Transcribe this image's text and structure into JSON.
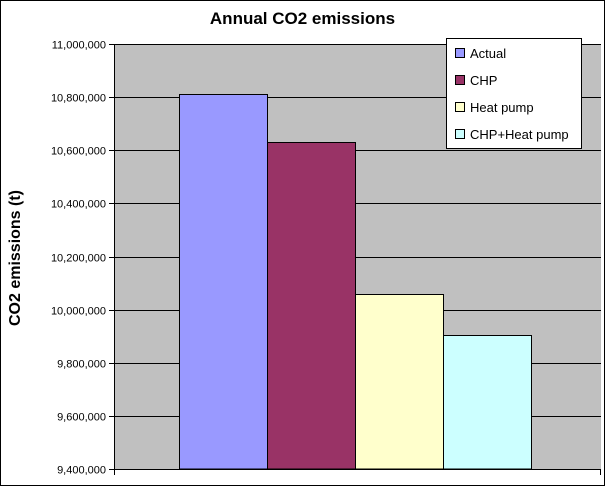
{
  "chart_data": {
    "type": "bar",
    "title": "Annual CO2 emissions",
    "xlabel": "",
    "ylabel": "CO2 emissions (t)",
    "ylim": [
      9400000,
      11000000
    ],
    "yticks": [
      9400000,
      9600000,
      9800000,
      10000000,
      10200000,
      10400000,
      10600000,
      10800000,
      11000000
    ],
    "ytick_labels": [
      "9,400,000",
      "9,600,000",
      "9,800,000",
      "10,000,000",
      "10,200,000",
      "10,400,000",
      "10,600,000",
      "10,800,000",
      "11,000,000"
    ],
    "grid": true,
    "legend_position": "top-right",
    "series": [
      {
        "name": "Actual",
        "value": 10810000,
        "color": "#9999ff"
      },
      {
        "name": "CHP",
        "value": 10630000,
        "color": "#993366"
      },
      {
        "name": "Heat pump",
        "value": 10060000,
        "color": "#ffffcc"
      },
      {
        "name": "CHP+Heat pump",
        "value": 9905000,
        "color": "#ccffff"
      }
    ]
  },
  "colors": {
    "plot_background": "#c0c0c0",
    "gridline": "#000000",
    "bar_outline": "#000000"
  }
}
